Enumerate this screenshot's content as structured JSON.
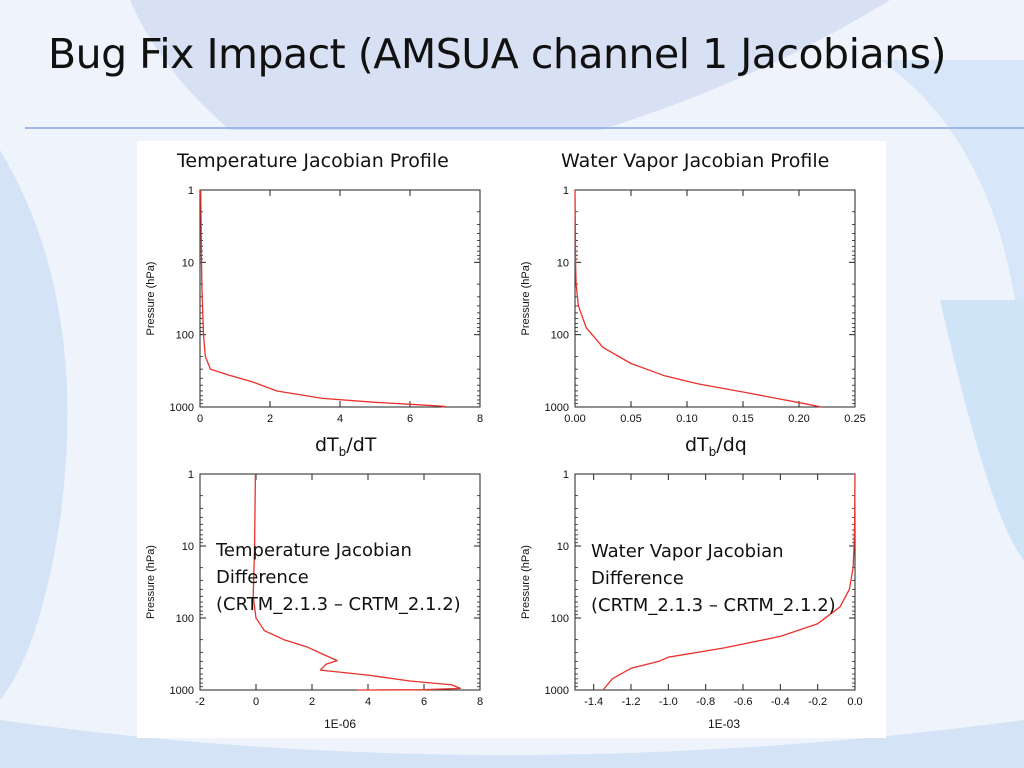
{
  "slide": {
    "title": "Bug Fix Impact (AMSUA channel 1 Jacobians)"
  },
  "colors": {
    "curve": "#e8312a",
    "accent": "#9db7e6",
    "background": "#eef3fc"
  },
  "chart_data": [
    {
      "type": "line",
      "title": "Temperature Jacobian Profile",
      "xlabel": "dTb/dT",
      "ylabel": "Pressure (hPa)",
      "xlim": [
        0,
        8
      ],
      "ylim": [
        1000,
        1
      ],
      "yscale": "log",
      "xticks": [
        "0",
        "2",
        "4",
        "6",
        "8"
      ],
      "yticks": [
        "1",
        "10",
        "100",
        "1000"
      ],
      "series": [
        {
          "x": [
            0.02,
            0.05,
            0.1,
            0.15,
            0.3,
            0.8,
            1.5,
            2.2,
            3.5,
            5.0,
            6.2,
            7.0,
            6.9
          ],
          "y": [
            1,
            20,
            100,
            200,
            300,
            360,
            450,
            600,
            760,
            860,
            930,
            980,
            1000
          ]
        }
      ]
    },
    {
      "type": "line",
      "title": "Water Vapor Jacobian Profile",
      "xlabel": "dTb/dq",
      "ylabel": "Pressure (hPa)",
      "xlim": [
        0,
        0.25
      ],
      "ylim": [
        1000,
        1
      ],
      "yscale": "log",
      "xticks": [
        "0.00",
        "0.05",
        "0.10",
        "0.15",
        "0.20",
        "0.25"
      ],
      "yticks": [
        "1",
        "10",
        "100",
        "1000"
      ],
      "series": [
        {
          "x": [
            0.0,
            0.0005,
            0.001,
            0.003,
            0.01,
            0.025,
            0.05,
            0.08,
            0.11,
            0.15,
            0.18,
            0.205,
            0.22
          ],
          "y": [
            1,
            10,
            20,
            40,
            80,
            150,
            250,
            370,
            480,
            620,
            760,
            900,
            1000
          ]
        }
      ]
    },
    {
      "type": "line",
      "title": "",
      "annotation": [
        "Temperature Jacobian",
        "Difference",
        "(CRTM_2.1.3 – CRTM_2.1.2)"
      ],
      "multiplier": "1E-06",
      "ylabel": "Pressure (hPa)",
      "xlim": [
        -2,
        8
      ],
      "ylim": [
        1000,
        1
      ],
      "yscale": "log",
      "xticks": [
        "-2",
        "0",
        "2",
        "4",
        "6",
        "8"
      ],
      "yticks": [
        "1",
        "10",
        "100",
        "1000"
      ],
      "series": [
        {
          "x": [
            -0.02,
            -0.05,
            -0.1,
            0.0,
            0.3,
            1.0,
            1.8,
            2.4,
            2.9,
            2.5,
            2.3,
            4.0,
            5.5,
            7.0,
            7.3,
            6.0,
            4.2,
            3.6
          ],
          "y": [
            1,
            10,
            50,
            100,
            150,
            200,
            250,
            320,
            390,
            440,
            530,
            620,
            750,
            850,
            950,
            990,
            1000,
            1020
          ]
        }
      ]
    },
    {
      "type": "line",
      "title": "",
      "annotation": [
        "Water Vapor Jacobian",
        "Difference",
        "(CRTM_2.1.3 – CRTM_2.1.2)"
      ],
      "multiplier": "1E-03",
      "ylabel": "Pressure (hPa)",
      "xlim": [
        -1.5,
        0.0
      ],
      "ylim": [
        1000,
        1
      ],
      "yscale": "log",
      "xticks": [
        "-1.4",
        "-1.2",
        "-1.0",
        "-0.8",
        "-0.6",
        "-0.4",
        "-0.2",
        "0.0"
      ],
      "yticks": [
        "1",
        "10",
        "100",
        "1000"
      ],
      "series": [
        {
          "x": [
            0.0,
            -0.002,
            -0.005,
            -0.01,
            -0.03,
            -0.08,
            -0.2,
            -0.4,
            -0.7,
            -1.0,
            -1.05,
            -1.2,
            -1.3,
            -1.35
          ],
          "y": [
            1,
            5,
            10,
            20,
            40,
            70,
            120,
            180,
            260,
            350,
            400,
            500,
            700,
            1000
          ]
        }
      ]
    }
  ],
  "labels": {
    "xunit_tl_base": "dT",
    "xunit_tl_sub": "b",
    "xunit_tl_rest": "/dT",
    "xunit_tr_base": "dT",
    "xunit_tr_sub": "b",
    "xunit_tr_rest": "/dq"
  }
}
